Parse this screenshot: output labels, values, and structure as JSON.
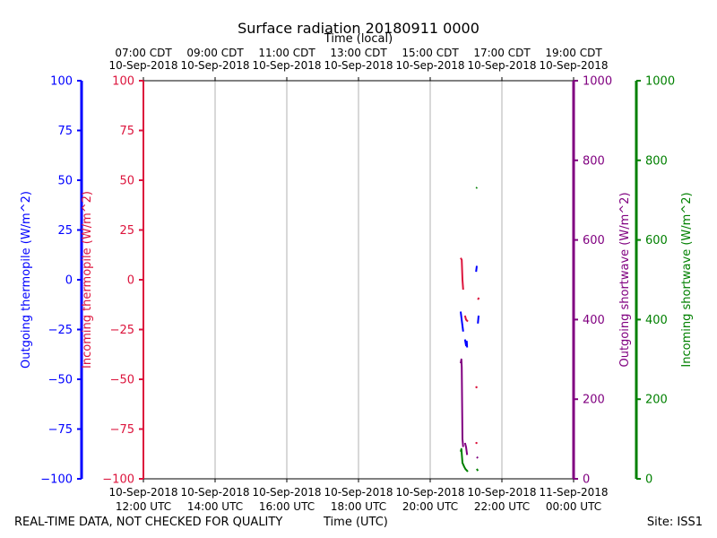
{
  "chart_data": {
    "type": "line",
    "title": "Surface radiation 20180911 0000",
    "top_axis_label": "Time (local)",
    "xlabel": "Time (UTC)",
    "x_range": [
      "2018-09-10 12:00",
      "2018-09-11 00:00"
    ],
    "x_ticks_utc": [
      {
        "t": 12,
        "line1": "10-Sep-2018",
        "line2": "12:00 UTC"
      },
      {
        "t": 14,
        "line1": "10-Sep-2018",
        "line2": "14:00 UTC"
      },
      {
        "t": 16,
        "line1": "10-Sep-2018",
        "line2": "16:00 UTC"
      },
      {
        "t": 18,
        "line1": "10-Sep-2018",
        "line2": "18:00 UTC"
      },
      {
        "t": 20,
        "line1": "10-Sep-2018",
        "line2": "20:00 UTC"
      },
      {
        "t": 22,
        "line1": "10-Sep-2018",
        "line2": "22:00 UTC"
      },
      {
        "t": 24,
        "line1": "11-Sep-2018",
        "line2": "00:00 UTC"
      }
    ],
    "x_ticks_local": [
      {
        "t": 12,
        "line1": "07:00 CDT",
        "line2": "10-Sep-2018"
      },
      {
        "t": 14,
        "line1": "09:00 CDT",
        "line2": "10-Sep-2018"
      },
      {
        "t": 16,
        "line1": "11:00 CDT",
        "line2": "10-Sep-2018"
      },
      {
        "t": 18,
        "line1": "13:00 CDT",
        "line2": "10-Sep-2018"
      },
      {
        "t": 20,
        "line1": "15:00 CDT",
        "line2": "10-Sep-2018"
      },
      {
        "t": 22,
        "line1": "17:00 CDT",
        "line2": "10-Sep-2018"
      },
      {
        "t": 24,
        "line1": "19:00 CDT",
        "line2": "10-Sep-2018"
      }
    ],
    "grid": true,
    "axes": [
      {
        "id": "out_thermopile",
        "label": "Outgoing thermopile (W/m^2)",
        "color": "#0000ff",
        "range": [
          -100,
          100
        ],
        "ticks": [
          -100,
          -75,
          -50,
          -25,
          0,
          25,
          50,
          75,
          100
        ],
        "tick_labels": [
          "−100",
          "−75",
          "−50",
          "−25",
          "0",
          "25",
          "50",
          "75",
          "100"
        ]
      },
      {
        "id": "in_thermopile",
        "label": "Incoming thermopile (W/m^2)",
        "color": "#dc143c",
        "range": [
          -100,
          100
        ],
        "ticks": [
          -100,
          -75,
          -50,
          -25,
          0,
          25,
          50,
          75,
          100
        ],
        "tick_labels": [
          "−100",
          "−75",
          "−50",
          "−25",
          "0",
          "25",
          "50",
          "75",
          "100"
        ]
      },
      {
        "id": "out_shortwave",
        "label": "Outgoing shortwave (W/m^2)",
        "color": "#800080",
        "range": [
          0,
          1000
        ],
        "ticks": [
          0,
          200,
          400,
          600,
          800,
          1000
        ],
        "tick_labels": [
          "0",
          "200",
          "400",
          "600",
          "800",
          "1000"
        ]
      },
      {
        "id": "in_shortwave",
        "label": "Incoming shortwave (W/m^2)",
        "color": "#008000",
        "range": [
          0,
          1000
        ],
        "ticks": [
          0,
          200,
          400,
          600,
          800,
          1000
        ],
        "tick_labels": [
          "0",
          "200",
          "400",
          "600",
          "800",
          "1000"
        ]
      }
    ],
    "series": [
      {
        "axis": "out_thermopile",
        "color": "#0000ff",
        "segments": [
          [
            [
              20.85,
              -16
            ],
            [
              20.92,
              -26
            ]
          ],
          [
            [
              20.97,
              -30
            ],
            [
              21.0,
              -33
            ],
            [
              21.02,
              -31
            ],
            [
              21.03,
              -34
            ]
          ],
          [
            [
              21.28,
              4
            ],
            [
              21.3,
              7
            ]
          ],
          [
            [
              21.35,
              -18
            ],
            [
              21.33,
              -22
            ]
          ]
        ]
      },
      {
        "axis": "in_thermopile",
        "color": "#dc143c",
        "segments": [
          [
            [
              20.85,
              11
            ],
            [
              20.88,
              10
            ],
            [
              20.9,
              0
            ],
            [
              20.92,
              -5
            ]
          ],
          [
            [
              20.97,
              -18
            ],
            [
              21.0,
              -20
            ],
            [
              21.05,
              -21
            ]
          ],
          [
            [
              21.33,
              -10
            ],
            [
              21.36,
              -9
            ]
          ],
          [
            [
              21.29,
              -54
            ]
          ],
          [
            [
              21.29,
              -82
            ]
          ]
        ]
      },
      {
        "axis": "out_shortwave",
        "color": "#800080",
        "segments": [
          [
            [
              20.85,
              290
            ],
            [
              20.87,
              300
            ],
            [
              20.88,
              280
            ],
            [
              20.9,
              100
            ],
            [
              20.92,
              80
            ]
          ],
          [
            [
              20.97,
              90
            ],
            [
              21.0,
              80
            ],
            [
              21.03,
              60
            ]
          ],
          [
            [
              21.3,
              55
            ],
            [
              21.33,
              52
            ]
          ]
        ]
      },
      {
        "axis": "in_shortwave",
        "color": "#008000",
        "segments": [
          [
            [
              20.85,
              68
            ],
            [
              20.87,
              75
            ],
            [
              20.9,
              40
            ],
            [
              20.95,
              30
            ],
            [
              20.98,
              25
            ],
            [
              21.03,
              20
            ],
            [
              21.05,
              18
            ]
          ],
          [
            [
              21.28,
              730
            ],
            [
              21.31,
              732
            ]
          ],
          [
            [
              21.3,
              25
            ],
            [
              21.33,
              20
            ]
          ]
        ]
      }
    ]
  },
  "footer": {
    "left": "REAL-TIME DATA, NOT CHECKED FOR QUALITY",
    "center": "Time (UTC)",
    "right": "Site: ISS1"
  }
}
